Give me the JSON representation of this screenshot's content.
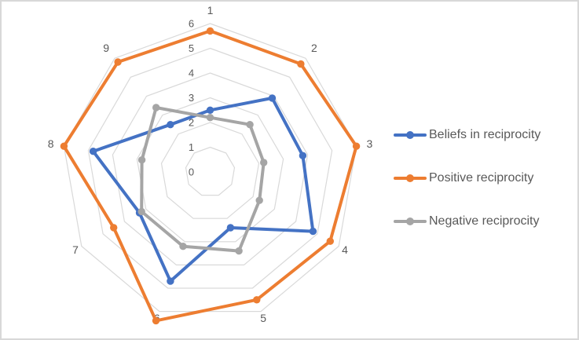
{
  "chart_data": {
    "type": "radar",
    "title": "",
    "categories": [
      "1",
      "2",
      "3",
      "4",
      "5",
      "6",
      "7",
      "8",
      "9"
    ],
    "series": [
      {
        "name": "Beliefs in reciprocity",
        "color": "#4472C4",
        "values": [
          2.5,
          3.9,
          3.8,
          4.8,
          2.4,
          4.7,
          3.3,
          4.8,
          2.5
        ]
      },
      {
        "name": "Positive reciprocity",
        "color": "#ED7D31",
        "values": [
          5.7,
          5.7,
          6.0,
          5.6,
          5.5,
          6.4,
          4.5,
          6.0,
          5.8
        ]
      },
      {
        "name": "Negative reciprocity",
        "color": "#A5A5A5",
        "values": [
          2.2,
          2.5,
          2.2,
          2.3,
          3.4,
          3.2,
          3.2,
          2.8,
          3.4
        ]
      }
    ],
    "radial_axis": {
      "min": 0,
      "max": 6,
      "step": 1,
      "tick_labels": [
        "0",
        "1",
        "2",
        "3",
        "4",
        "5",
        "6"
      ]
    },
    "grid": true,
    "grid_color": "#D9D9D9",
    "label_color": "#595959",
    "legend_position": "right",
    "marker": "circle"
  }
}
